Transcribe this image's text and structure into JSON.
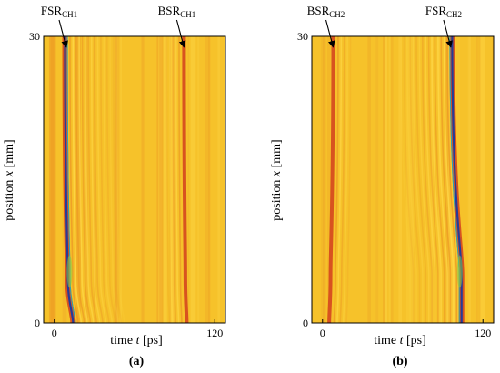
{
  "chart_data": [
    {
      "panel_label": "(a)",
      "type": "heatmap",
      "xlabel_prefix": "time ",
      "xlabel_var": "t",
      "xlabel_unit": " [ps]",
      "ylabel_prefix": "position ",
      "ylabel_var": "x",
      "ylabel_unit": " [mm]",
      "x_tick_labels": [
        "0",
        "120"
      ],
      "x_ticks": [
        0,
        120
      ],
      "y_tick_labels": [
        "0",
        "30"
      ],
      "y_ticks": [
        0,
        30
      ],
      "xlim": [
        -8,
        128
      ],
      "ylim": [
        0,
        30
      ],
      "grid": false,
      "colors": {
        "background": "#f6c22a",
        "ripple_light": "#ffd94a",
        "ripple_dark": "#ec9a25",
        "reflection_red": "#d2401d",
        "reflection_blue": "#253b9a",
        "reflection_cyan": "#2aa7b8",
        "reflection_green": "#88cc44"
      },
      "annotations": [
        {
          "base": "FSR",
          "sub": "CH1",
          "x": 9,
          "y": 30
        },
        {
          "base": "BSR",
          "sub": "CH1",
          "x": 97,
          "y": 30
        }
      ],
      "reflections": [
        {
          "name": "FSR_CH1",
          "strong": true,
          "x_top": 8,
          "x_at_5": 10,
          "x_bottom": 14
        },
        {
          "name": "BSR_CH1",
          "strong": false,
          "x_top": 97,
          "x_at_5": 98,
          "x_bottom": 99
        }
      ]
    },
    {
      "panel_label": "(b)",
      "type": "heatmap",
      "xlabel_prefix": "time ",
      "xlabel_var": "t",
      "xlabel_unit": " [ps]",
      "ylabel_prefix": "position ",
      "ylabel_var": "x",
      "ylabel_unit": " [mm]",
      "x_tick_labels": [
        "0",
        "120"
      ],
      "x_ticks": [
        0,
        120
      ],
      "y_tick_labels": [
        "0",
        "30"
      ],
      "y_ticks": [
        0,
        30
      ],
      "xlim": [
        -8,
        128
      ],
      "ylim": [
        0,
        30
      ],
      "grid": false,
      "colors": {
        "background": "#f6c22a",
        "ripple_light": "#ffd94a",
        "ripple_dark": "#ec9a25",
        "reflection_red": "#d2401d",
        "reflection_blue": "#253b9a",
        "reflection_cyan": "#2aa7b8",
        "reflection_green": "#88cc44"
      },
      "annotations": [
        {
          "base": "BSR",
          "sub": "CH2",
          "x": 8,
          "y": 30
        },
        {
          "base": "FSR",
          "sub": "CH2",
          "x": 96,
          "y": 30
        }
      ],
      "reflections": [
        {
          "name": "BSR_CH2",
          "strong": false,
          "x_top": 8,
          "x_at_5": 6,
          "x_bottom": 5
        },
        {
          "name": "FSR_CH2",
          "strong": true,
          "x_top": 97,
          "x_at_5": 104,
          "x_bottom": 104
        }
      ]
    }
  ]
}
